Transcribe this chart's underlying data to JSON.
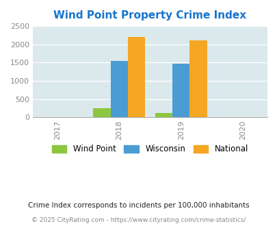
{
  "title": "Wind Point Property Crime Index",
  "title_color": "#1874CD",
  "years": [
    2017,
    2018,
    2019,
    2020
  ],
  "data_years": [
    2018,
    2019
  ],
  "wind_point": [
    250,
    125
  ],
  "wisconsin": [
    1550,
    1475
  ],
  "national": [
    2200,
    2100
  ],
  "color_wind_point": "#8DC63F",
  "color_wisconsin": "#4B9CD3",
  "color_national": "#F5A623",
  "ylim": [
    0,
    2500
  ],
  "yticks": [
    0,
    500,
    1000,
    1500,
    2000,
    2500
  ],
  "bg_color": "#DCE9EC",
  "fig_bg": "#FFFFFF",
  "legend_labels": [
    "Wind Point",
    "Wisconsin",
    "National"
  ],
  "footnote1": "Crime Index corresponds to incidents per 100,000 inhabitants",
  "footnote2": "© 2025 CityRating.com - https://www.cityrating.com/crime-statistics/",
  "bar_width": 0.28
}
